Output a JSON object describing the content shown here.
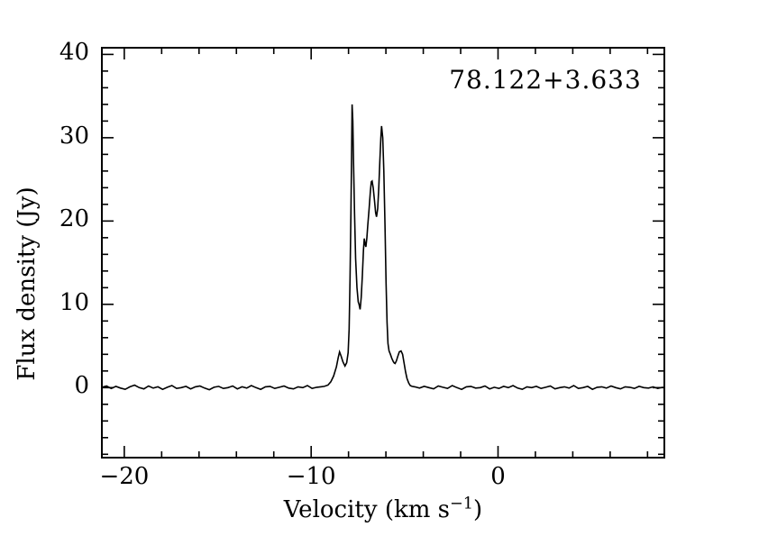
{
  "figure": {
    "annotation": "78.122+3.633",
    "ylabel": "Flux density (Jy)",
    "xlabel_pre": "Velocity (km s",
    "xlabel_sup": "−1",
    "xlabel_post": ")"
  },
  "chart_data": {
    "type": "line",
    "title": "78.122+3.633",
    "xlabel": "Velocity (km s^-1)",
    "ylabel": "Flux density (Jy)",
    "xlim": [
      -21.2,
      8.9
    ],
    "ylim": [
      -8.4,
      40.8
    ],
    "grid": false,
    "legend": "none",
    "line_color": "#000000",
    "frame_color": "#000000",
    "background": "#ffffff",
    "x_major_ticks": [
      {
        "value": -20,
        "label": "−20"
      },
      {
        "value": -10,
        "label": "−10"
      },
      {
        "value": 0,
        "label": "0"
      }
    ],
    "x_minor_step": 2,
    "y_major_ticks": [
      {
        "value": 0,
        "label": "0"
      },
      {
        "value": 10,
        "label": "10"
      },
      {
        "value": 20,
        "label": "20"
      },
      {
        "value": 30,
        "label": "30"
      },
      {
        "value": 40,
        "label": "40"
      }
    ],
    "y_minor_step": 2,
    "peaks_jy": {
      "main": 34.0,
      "middle": 24.8,
      "right": 31.4,
      "left_wing": 4.3,
      "right_wing": 4.4
    },
    "points": [
      [
        -21.2,
        0.05
      ],
      [
        -20.95,
        0.2
      ],
      [
        -20.7,
        -0.1
      ],
      [
        -20.45,
        0.15
      ],
      [
        -20.2,
        -0.05
      ],
      [
        -19.95,
        -0.2
      ],
      [
        -19.7,
        0.1
      ],
      [
        -19.45,
        0.3
      ],
      [
        -19.2,
        0.0
      ],
      [
        -18.95,
        -0.15
      ],
      [
        -18.7,
        0.2
      ],
      [
        -18.45,
        -0.05
      ],
      [
        -18.2,
        0.1
      ],
      [
        -17.95,
        -0.2
      ],
      [
        -17.7,
        0.05
      ],
      [
        -17.45,
        0.25
      ],
      [
        -17.2,
        -0.1
      ],
      [
        -16.95,
        0.0
      ],
      [
        -16.7,
        0.15
      ],
      [
        -16.45,
        -0.15
      ],
      [
        -16.2,
        0.1
      ],
      [
        -15.95,
        0.2
      ],
      [
        -15.7,
        -0.05
      ],
      [
        -15.45,
        -0.25
      ],
      [
        -15.2,
        0.05
      ],
      [
        -14.95,
        0.15
      ],
      [
        -14.7,
        -0.1
      ],
      [
        -14.45,
        0.0
      ],
      [
        -14.2,
        0.2
      ],
      [
        -13.95,
        -0.15
      ],
      [
        -13.7,
        0.1
      ],
      [
        -13.45,
        -0.05
      ],
      [
        -13.2,
        0.25
      ],
      [
        -12.95,
        0.0
      ],
      [
        -12.7,
        -0.2
      ],
      [
        -12.45,
        0.1
      ],
      [
        -12.2,
        0.15
      ],
      [
        -11.95,
        -0.1
      ],
      [
        -11.7,
        0.05
      ],
      [
        -11.45,
        0.2
      ],
      [
        -11.2,
        -0.05
      ],
      [
        -10.95,
        -0.15
      ],
      [
        -10.7,
        0.1
      ],
      [
        -10.45,
        0.0
      ],
      [
        -10.2,
        0.25
      ],
      [
        -9.95,
        -0.1
      ],
      [
        -9.7,
        0.05
      ],
      [
        -9.5,
        0.1
      ],
      [
        -9.3,
        0.15
      ],
      [
        -9.1,
        0.3
      ],
      [
        -8.95,
        0.7
      ],
      [
        -8.8,
        1.4
      ],
      [
        -8.65,
        2.5
      ],
      [
        -8.55,
        3.6
      ],
      [
        -8.48,
        4.3
      ],
      [
        -8.4,
        3.8
      ],
      [
        -8.3,
        3.1
      ],
      [
        -8.19,
        2.6
      ],
      [
        -8.1,
        3.0
      ],
      [
        -8.02,
        4.2
      ],
      [
        -7.97,
        7.0
      ],
      [
        -7.92,
        13.0
      ],
      [
        -7.87,
        21.0
      ],
      [
        -7.84,
        27.5
      ],
      [
        -7.81,
        34.0
      ],
      [
        -7.77,
        32.0
      ],
      [
        -7.73,
        27.0
      ],
      [
        -7.68,
        21.0
      ],
      [
        -7.62,
        15.5
      ],
      [
        -7.55,
        12.0
      ],
      [
        -7.48,
        10.3
      ],
      [
        -7.44,
        10.0
      ],
      [
        -7.38,
        9.4
      ],
      [
        -7.32,
        10.8
      ],
      [
        -7.26,
        13.5
      ],
      [
        -7.2,
        16.5
      ],
      [
        -7.16,
        17.9
      ],
      [
        -7.11,
        17.2
      ],
      [
        -7.07,
        16.9
      ],
      [
        -7.02,
        18.0
      ],
      [
        -6.97,
        19.5
      ],
      [
        -6.9,
        21.5
      ],
      [
        -6.83,
        23.6
      ],
      [
        -6.78,
        24.7
      ],
      [
        -6.74,
        24.8
      ],
      [
        -6.68,
        24.0
      ],
      [
        -6.61,
        22.4
      ],
      [
        -6.55,
        21.0
      ],
      [
        -6.5,
        20.5
      ],
      [
        -6.44,
        21.5
      ],
      [
        -6.38,
        24.0
      ],
      [
        -6.32,
        27.5
      ],
      [
        -6.27,
        30.0
      ],
      [
        -6.23,
        31.4
      ],
      [
        -6.17,
        30.0
      ],
      [
        -6.11,
        26.0
      ],
      [
        -6.05,
        19.5
      ],
      [
        -5.99,
        12.5
      ],
      [
        -5.94,
        7.8
      ],
      [
        -5.89,
        5.3
      ],
      [
        -5.83,
        4.4
      ],
      [
        -5.76,
        4.0
      ],
      [
        -5.68,
        3.5
      ],
      [
        -5.6,
        3.1
      ],
      [
        -5.55,
        2.95
      ],
      [
        -5.51,
        2.9
      ],
      [
        -5.44,
        3.2
      ],
      [
        -5.36,
        3.8
      ],
      [
        -5.28,
        4.3
      ],
      [
        -5.19,
        4.4
      ],
      [
        -5.11,
        4.0
      ],
      [
        -5.03,
        3.0
      ],
      [
        -4.95,
        1.9
      ],
      [
        -4.87,
        1.1
      ],
      [
        -4.78,
        0.55
      ],
      [
        -4.7,
        0.25
      ],
      [
        -4.6,
        0.15
      ],
      [
        -4.45,
        0.1
      ],
      [
        -4.2,
        -0.05
      ],
      [
        -3.95,
        0.15
      ],
      [
        -3.7,
        0.0
      ],
      [
        -3.45,
        -0.15
      ],
      [
        -3.2,
        0.2
      ],
      [
        -2.95,
        0.05
      ],
      [
        -2.7,
        -0.1
      ],
      [
        -2.45,
        0.25
      ],
      [
        -2.2,
        0.0
      ],
      [
        -1.95,
        -0.2
      ],
      [
        -1.7,
        0.1
      ],
      [
        -1.45,
        0.15
      ],
      [
        -1.2,
        -0.05
      ],
      [
        -0.95,
        0.0
      ],
      [
        -0.7,
        0.2
      ],
      [
        -0.45,
        -0.15
      ],
      [
        -0.2,
        0.05
      ],
      [
        0.05,
        -0.1
      ],
      [
        0.3,
        0.15
      ],
      [
        0.55,
        0.0
      ],
      [
        0.8,
        0.25
      ],
      [
        1.05,
        -0.05
      ],
      [
        1.3,
        -0.2
      ],
      [
        1.55,
        0.1
      ],
      [
        1.8,
        0.0
      ],
      [
        2.05,
        0.15
      ],
      [
        2.3,
        -0.1
      ],
      [
        2.55,
        0.05
      ],
      [
        2.8,
        0.2
      ],
      [
        3.05,
        -0.15
      ],
      [
        3.3,
        0.0
      ],
      [
        3.55,
        0.1
      ],
      [
        3.8,
        -0.05
      ],
      [
        4.05,
        0.25
      ],
      [
        4.3,
        -0.1
      ],
      [
        4.55,
        0.0
      ],
      [
        4.8,
        0.15
      ],
      [
        5.05,
        -0.2
      ],
      [
        5.3,
        0.05
      ],
      [
        5.55,
        0.1
      ],
      [
        5.8,
        -0.05
      ],
      [
        6.05,
        0.2
      ],
      [
        6.3,
        0.0
      ],
      [
        6.55,
        -0.15
      ],
      [
        6.8,
        0.1
      ],
      [
        7.05,
        0.05
      ],
      [
        7.3,
        -0.1
      ],
      [
        7.55,
        0.15
      ],
      [
        7.8,
        0.0
      ],
      [
        8.05,
        -0.05
      ],
      [
        8.3,
        0.1
      ],
      [
        8.55,
        -0.1
      ],
      [
        8.8,
        0.05
      ],
      [
        8.9,
        0.0
      ]
    ]
  }
}
